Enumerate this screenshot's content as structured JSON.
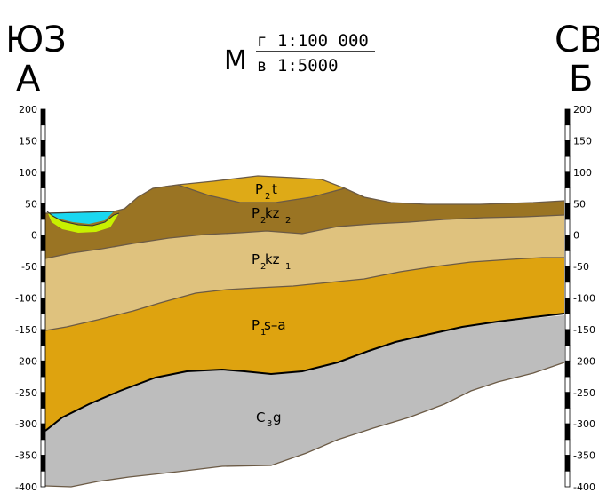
{
  "header": {
    "left_direction": "ЮЗ",
    "left_point": "А",
    "right_direction": "СВ",
    "right_point": "Б",
    "scale_prefix": "М",
    "scale_horizontal": "г 1:100 000",
    "scale_vertical": "в 1:5000"
  },
  "axis": {
    "unit": "",
    "ticks": [
      200,
      150,
      100,
      50,
      0,
      -50,
      -100,
      -150,
      -200,
      -250,
      -300,
      -350,
      -400
    ],
    "left_labels": [
      "200",
      "150",
      "100",
      "50",
      "0",
      "-50",
      "-100",
      "-150",
      "-200",
      "-250",
      "-300",
      "-350",
      "-400"
    ],
    "right_labels": [
      "200",
      "150",
      "100",
      "50",
      "0",
      "-50",
      "-100",
      "-150",
      "-200",
      "-250",
      "-300",
      "-350",
      "-400"
    ]
  },
  "layers": [
    {
      "id": "p2t",
      "main": "P",
      "sub": "2",
      "tail": " t",
      "color": "#deaa17"
    },
    {
      "id": "p2kz2",
      "main": "P",
      "sub": "2",
      "tail": " kz",
      "tail_sub": "2",
      "color": "#9a7423"
    },
    {
      "id": "p2kz1",
      "main": "P",
      "sub": "2",
      "tail": " kz",
      "tail_sub": "1",
      "color": "#dfc27e"
    },
    {
      "id": "p1sa",
      "main": "P",
      "sub": "1",
      "tail": "s–a",
      "color": "#dea30f"
    },
    {
      "id": "c3g",
      "main": "C",
      "sub": "3",
      "tail": " g",
      "color": "#bdbdbd"
    }
  ],
  "water_color": "#1ad7f0",
  "lens_color": "#c8f000",
  "surface_color": "#a07a26"
}
